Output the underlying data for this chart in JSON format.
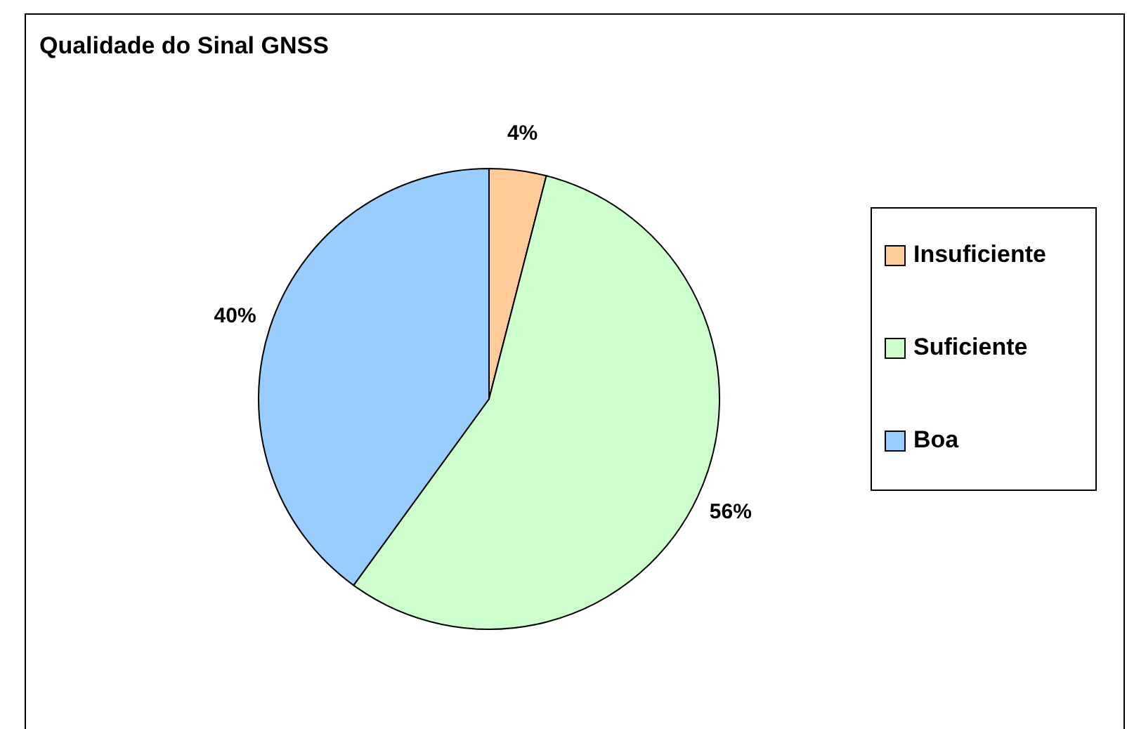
{
  "chart_data": {
    "type": "pie",
    "title": "Qualidade do Sinal GNSS",
    "categories": [
      "Insuficiente",
      "Suficiente",
      "Boa"
    ],
    "values": [
      4,
      56,
      40
    ],
    "colors": [
      "#ffcc99",
      "#ccffcc",
      "#99ccff"
    ],
    "value_labels": [
      "4%",
      "56%",
      "40%"
    ],
    "legend": "right"
  }
}
